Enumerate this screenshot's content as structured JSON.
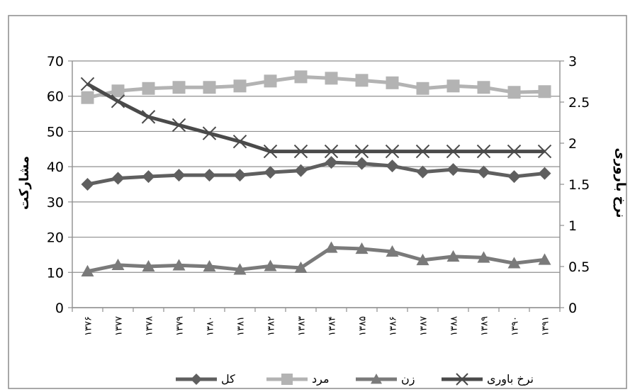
{
  "chart_data": {
    "type": "line",
    "title": "",
    "categories": [
      "۱۳۷۶",
      "۱۳۷۷",
      "۱۳۷۸",
      "۱۳۷۹",
      "۱۳۸۰",
      "۱۳۸۱",
      "۱۳۸۲",
      "۱۳۸۳",
      "۱۳۸۴",
      "۱۳۸۵",
      "۱۳۸۶",
      "۱۳۸۷",
      "۱۳۸۸",
      "۱۳۸۹",
      "۱۳۹۰",
      "۱۳۹۱"
    ],
    "ylabel_left": "مشارکت",
    "ylabel_right": "نرخ باروری",
    "ylim_left": [
      0,
      70
    ],
    "ylim_right": [
      0,
      3
    ],
    "yticks_left": [
      "0",
      "10",
      "20",
      "30",
      "40",
      "50",
      "60",
      "70"
    ],
    "yticks_right": [
      "0",
      "0.5",
      "1",
      "1.5",
      "2",
      "2.5",
      "3"
    ],
    "grid": true,
    "legend_position": "bottom",
    "series": [
      {
        "name": "کل",
        "axis": "left",
        "marker": "diamond",
        "color": "#5f5f5f",
        "values": [
          35,
          36.7,
          37.2,
          37.6,
          37.6,
          37.6,
          38.4,
          38.9,
          41.2,
          40.9,
          40.2,
          38.5,
          39.2,
          38.5,
          37.2,
          38.1
        ]
      },
      {
        "name": "مرد",
        "axis": "left",
        "marker": "square",
        "color": "#b3b3b3",
        "values": [
          59.6,
          61.5,
          62.2,
          62.5,
          62.5,
          62.9,
          64.3,
          65.5,
          65.1,
          64.5,
          63.8,
          62.2,
          62.9,
          62.5,
          61.1,
          61.3
        ]
      },
      {
        "name": "زن",
        "axis": "left",
        "marker": "triangle",
        "color": "#7a7a7a",
        "values": [
          10.3,
          12.1,
          11.7,
          12.0,
          11.7,
          10.8,
          11.8,
          11.3,
          17.0,
          16.7,
          15.9,
          13.5,
          14.5,
          14.2,
          12.6,
          13.6
        ]
      },
      {
        "name": "نرخ باوری",
        "axis": "right",
        "marker": "x",
        "color": "#4a4a4a",
        "values": [
          2.72,
          2.51,
          2.32,
          2.22,
          2.12,
          2.02,
          1.9,
          1.9,
          1.9,
          1.9,
          1.9,
          1.9,
          1.9,
          1.9,
          1.9,
          1.9
        ]
      }
    ]
  }
}
